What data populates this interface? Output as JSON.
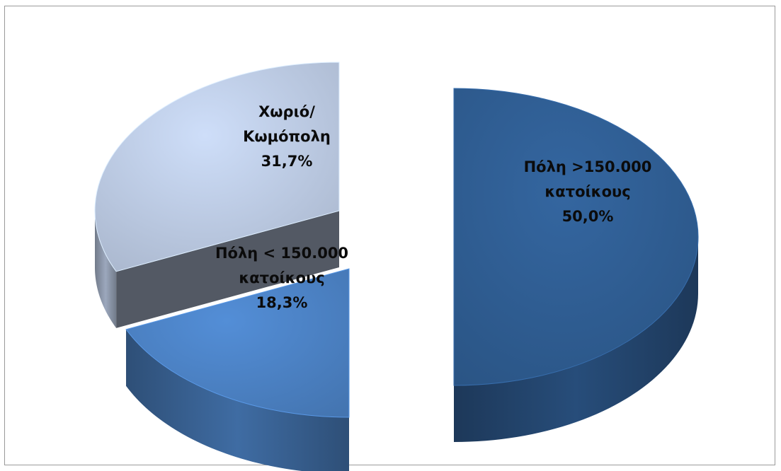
{
  "chart_data": {
    "type": "pie",
    "title": "",
    "slices": [
      {
        "name_lines": [
          "Πόλη >150.000",
          "κατοίκους"
        ],
        "value": 50.0,
        "value_label": "50,0%",
        "color": "#2e5b8f"
      },
      {
        "name_lines": [
          "Πόλη < 150.000",
          "κατοίκους"
        ],
        "value": 18.3,
        "value_label": "18,3%",
        "color": "#4a7fc0"
      },
      {
        "name_lines": [
          "Χωριό/",
          "Κωμόπολη"
        ],
        "value": 31.7,
        "value_label": "31,7%",
        "color": "#b8c6de"
      }
    ],
    "style": "3d-exploded",
    "legend": "none"
  }
}
